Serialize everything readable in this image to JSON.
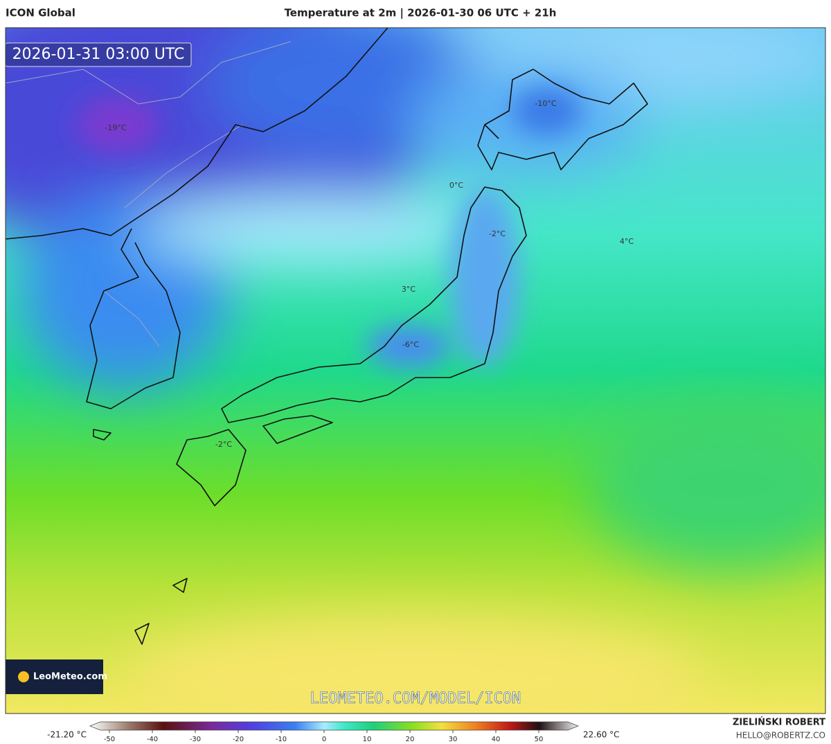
{
  "header": {
    "model": "ICON Global",
    "title": "Temperature at 2m | 2026-01-30 06 UTC + 21h"
  },
  "map": {
    "valid_time": "2026-01-31 03:00 UTC",
    "labels": [
      "-19°C",
      "-10°C",
      "0°C",
      "-2°C",
      "4°C",
      "3°C",
      "-6°C",
      "-2°C"
    ],
    "logo": "LeoMeteo.com",
    "watermark": "LEOMETEO.COM/MODEL/ICON"
  },
  "colorbar": {
    "min_label": "-21.20 °C",
    "max_label": "22.60 °C",
    "ticks": [
      -50,
      -40,
      -30,
      -20,
      -10,
      0,
      10,
      20,
      30,
      40,
      50
    ]
  },
  "credits": {
    "author": "ZIELIŃSKI ROBERT",
    "email": "HELLO@ROBERTZ.CO"
  }
}
